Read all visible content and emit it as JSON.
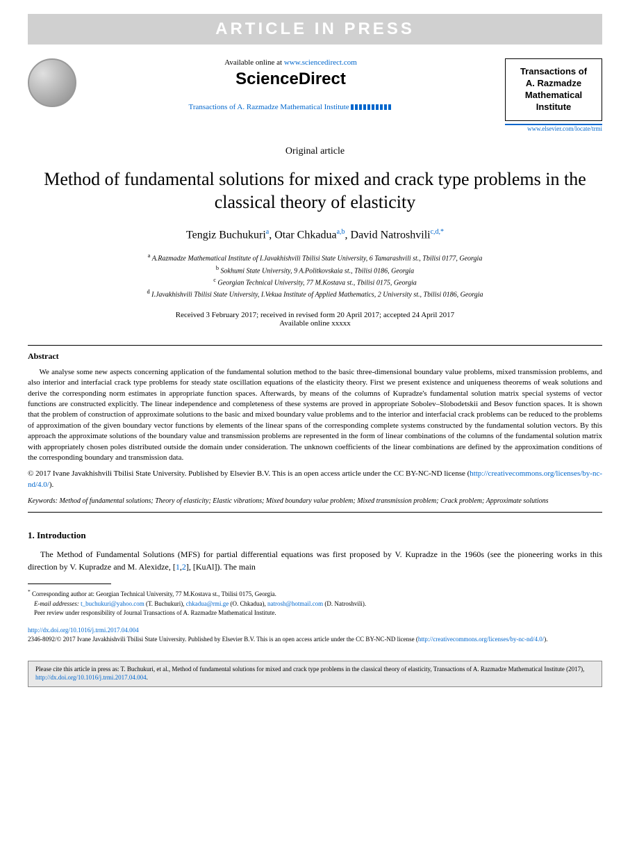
{
  "banner": {
    "text": "ARTICLE IN PRESS"
  },
  "header": {
    "available_prefix": "Available online at ",
    "available_url": "www.sciencedirect.com",
    "brand": "ScienceDirect",
    "journal_ref": "Transactions of A. Razmadze Mathematical Institute ",
    "journal_box_line1": "Transactions of",
    "journal_box_line2": "A. Razmadze",
    "journal_box_line3": "Mathematical",
    "journal_box_line4": "Institute",
    "journal_link": "www.elsevier.com/locate/trmi"
  },
  "article": {
    "type": "Original article",
    "title": "Method of fundamental solutions for mixed and crack type problems in the classical theory of elasticity",
    "authors_html": "Tengiz Buchukuri<sup>a</sup>, Otar Chkadua<sup>a,b</sup>, David Natroshvili<sup>c,d,*</sup>",
    "aff_a": "A.Razmadze Mathematical Institute of I.Javakhishvili Tbilisi State University, 6 Tamarashvili st., Tbilisi 0177, Georgia",
    "aff_b": "Sokhumi State University, 9 A.Politkovskaia st., Tbilisi 0186, Georgia",
    "aff_c": "Georgian Technical University, 77 M.Kostava st., Tbilisi 0175, Georgia",
    "aff_d": "I.Javakhishvili Tbilisi State University, I.Vekua Institute of Applied Mathematics, 2 University st., Tbilisi 0186, Georgia",
    "dates_line1": "Received 3 February 2017; received in revised form 20 April 2017; accepted 24 April 2017",
    "dates_line2": "Available online xxxxx"
  },
  "abstract": {
    "heading": "Abstract",
    "text": "We analyse some new aspects concerning application of the fundamental solution method to the basic three-dimensional boundary value problems, mixed transmission problems, and also interior and interfacial crack type problems for steady state oscillation equations of the elasticity theory. First we present existence and uniqueness theorems of weak solutions and derive the corresponding norm estimates in appropriate function spaces. Afterwards, by means of the columns of Kupradze's fundamental solution matrix special systems of vector functions are constructed explicitly. The linear independence and completeness of these systems are proved in appropriate Sobolev–Slobodetskii and Besov function spaces. It is shown that the problem of construction of approximate solutions to the basic and mixed boundary value problems and to the interior and interfacial crack problems can be reduced to the problems of approximation of the given boundary vector functions by elements of the linear spans of the corresponding complete systems constructed by the fundamental solution vectors. By this approach the approximate solutions of the boundary value and transmission problems are represented in the form of linear combinations of the columns of the fundamental solution matrix with appropriately chosen poles distributed outside the domain under consideration. The unknown coefficients of the linear combinations are defined by the approximation conditions of the corresponding boundary and transmission data.",
    "copyright": "© 2017 Ivane Javakhishvili Tbilisi State University. Published by Elsevier B.V. This is an open access article under the CC BY-NC-ND license (",
    "license_url": "http://creativecommons.org/licenses/by-nc-nd/4.0/",
    "copyright_end": ")."
  },
  "keywords": {
    "label": "Keywords:",
    "text": " Method of fundamental solutions; Theory of elasticity; Elastic vibrations; Mixed boundary value problem; Mixed transmission problem; Crack problem; Approximate solutions"
  },
  "intro": {
    "heading": "1. Introduction",
    "text_before_refs": "The Method of Fundamental Solutions (MFS) for partial differential equations was first proposed by V. Kupradze in the 1960s (see the pioneering works in this direction by V. Kupradze and M. Alexidze, [",
    "ref1": "1",
    "ref_sep": ",",
    "ref2": "2",
    "text_after_refs": "], [KuAl]). The main"
  },
  "footnotes": {
    "corr": "Corresponding author at: Georgian Technical University, 77 M.Kostava st., Tbilisi 0175, Georgia.",
    "email_label": "E-mail addresses: ",
    "email1": "t_buchukuri@yahoo.com",
    "email1_name": " (T. Buchukuri), ",
    "email2": "chkadua@rmi.ge",
    "email2_name": " (O. Chkadua), ",
    "email3": "natrosh@hotmail.com",
    "email3_name": " (D. Natroshvili).",
    "peer": "Peer review under responsibility of Journal Transactions of A. Razmadze Mathematical Institute."
  },
  "footer": {
    "doi": "http://dx.doi.org/10.1016/j.trmi.2017.04.004",
    "issn": "2346-8092/© 2017 Ivane Javakhishvili Tbilisi State University. Published by Elsevier B.V. This is an open access article under the CC BY-NC-ND license (",
    "license_url": "http://creativecommons.org/licenses/by-nc-nd/4.0/",
    "issn_end": ")."
  },
  "citebox": {
    "text_before": "Please cite this article in press as: T. Buchukuri, et al., Method of fundamental solutions for mixed and crack type problems in the classical theory of elasticity, Transactions of A. Razmadze Mathematical Institute (2017), ",
    "doi": "http://dx.doi.org/10.1016/j.trmi.2017.04.004",
    "text_after": "."
  },
  "colors": {
    "link": "#0066cc",
    "banner_bg": "#d0d0d0",
    "banner_text": "#ffffff",
    "citebox_bg": "#e8e8e8"
  }
}
